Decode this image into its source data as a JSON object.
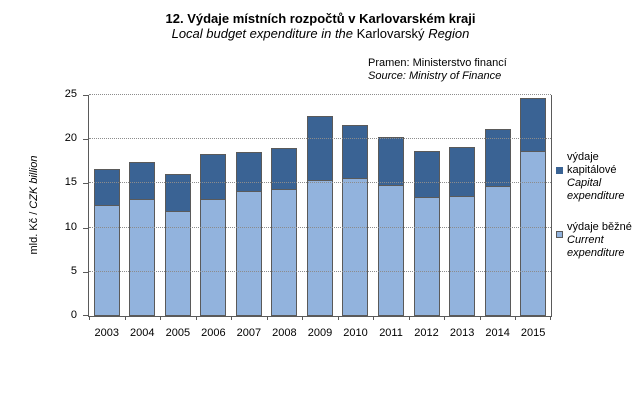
{
  "title": {
    "line1": "12. Výdaje místních rozpočtů v Karlovarském kraji",
    "line2_italic_prefix": "Local budget expenditure in the",
    "line2_upright": "Karlovarský",
    "line2_italic_suffix": "Region"
  },
  "source": {
    "czech": "Pramen: Ministerstvo financí",
    "english": "Source: Ministry of Finance"
  },
  "y_axis": {
    "label_regular": "mld. Kč /",
    "label_italic": "CZK billion",
    "ticks": [
      0,
      5,
      10,
      15,
      20,
      25
    ]
  },
  "legend": {
    "items": [
      {
        "czech_lines": [
          "výdaje",
          "kapitálové"
        ],
        "english_lines": [
          "Capital",
          "expenditure"
        ],
        "color": "#3a6394"
      },
      {
        "czech_lines": [
          "výdaje běžné"
        ],
        "english_lines": [
          "Current",
          "expenditure"
        ],
        "color": "#92b3dd"
      }
    ]
  },
  "colors": {
    "capital": "#3a6394",
    "current": "#92b3dd",
    "bar_border": "#5a5a5a",
    "axis": "#5a5a5a",
    "gridline": "#8c8c8c"
  },
  "chart_data": {
    "type": "bar",
    "stacked": true,
    "title": "12. Výdaje místních rozpočtů v Karlovarském kraji / Local budget expenditure in the Karlovarský Region",
    "xlabel": "",
    "ylabel": "mld. Kč / CZK billion",
    "ylim": [
      0,
      25
    ],
    "grid": "horizontal-dotted",
    "legend_position": "right",
    "categories": [
      2003,
      2004,
      2005,
      2006,
      2007,
      2008,
      2009,
      2010,
      2011,
      2012,
      2013,
      2014,
      2015
    ],
    "series": [
      {
        "name": "výdaje běžné / Current expenditure",
        "key": "current",
        "color": "#92b3dd",
        "values": [
          12.4,
          13.1,
          11.8,
          13.1,
          14.0,
          14.2,
          15.3,
          15.5,
          14.7,
          13.3,
          13.5,
          14.6,
          18.6
        ]
      },
      {
        "name": "výdaje kapitálové / Capital expenditure",
        "key": "capital",
        "color": "#3a6394",
        "values": [
          4.2,
          4.3,
          4.3,
          5.2,
          4.5,
          4.8,
          7.3,
          6.1,
          5.6,
          5.4,
          5.6,
          6.5,
          6.1
        ]
      }
    ],
    "totals": [
      16.6,
      17.4,
      16.1,
      18.3,
      18.5,
      19.0,
      22.6,
      21.6,
      20.3,
      18.7,
      19.1,
      21.1,
      24.7
    ]
  }
}
